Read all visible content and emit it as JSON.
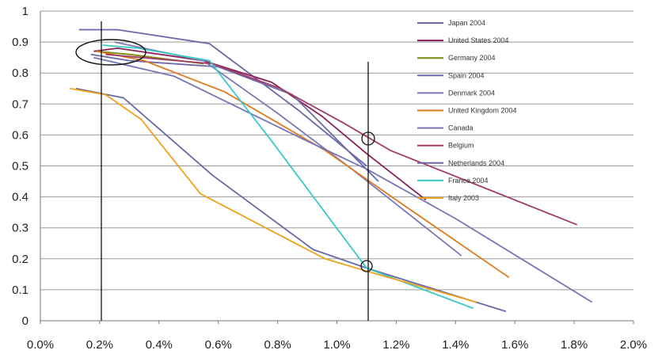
{
  "chart_data": {
    "type": "line",
    "title": "",
    "xlabel": "",
    "ylabel": "",
    "xlim": [
      0.0,
      2.0
    ],
    "ylim": [
      0,
      1
    ],
    "x_ticks": [
      "0.0%",
      "0.2%",
      "0.4%",
      "0.6%",
      "0.8%",
      "1.0%",
      "1.2%",
      "1.4%",
      "1.6%",
      "1.8%",
      "2.0%"
    ],
    "y_ticks": [
      "0",
      "0.1",
      "0.2",
      "0.3",
      "0.4",
      "0.5",
      "0.6",
      "0.7",
      "0.8",
      "0.9",
      "1"
    ],
    "grid": "horizontal",
    "legend_position": "right",
    "series": [
      {
        "name": "Japan 2004",
        "color": "#6a6aa8",
        "x": [
          0.13,
          0.26,
          0.57,
          0.87,
          1.1
        ],
        "y": [
          0.94,
          0.94,
          0.895,
          0.68,
          0.5
        ]
      },
      {
        "name": "United States 2004",
        "color": "#8b2257",
        "x": [
          0.18,
          0.26,
          0.55,
          0.78,
          0.95,
          1.1,
          1.3
        ],
        "y": [
          0.87,
          0.88,
          0.84,
          0.77,
          0.66,
          0.54,
          0.39
        ]
      },
      {
        "name": "Germany 2004",
        "color": "#7a8a0a",
        "x": [
          0.19,
          0.3,
          0.55
        ],
        "y": [
          0.87,
          0.86,
          0.83
        ]
      },
      {
        "name": "Spain 2004",
        "color": "#6a6aa8",
        "x": [
          0.17,
          0.3,
          0.6,
          0.85,
          1.14
        ],
        "y": [
          0.86,
          0.84,
          0.82,
          0.73,
          0.45
        ]
      },
      {
        "name": "Denmark 2004",
        "color": "#7a7ab8",
        "x": [
          0.25,
          0.55,
          0.8,
          1.05,
          1.42
        ],
        "y": [
          0.9,
          0.84,
          0.67,
          0.49,
          0.21
        ]
      },
      {
        "name": "United Kingdom 2004",
        "color": "#e07a1f",
        "x": [
          0.19,
          0.35,
          0.62,
          0.96,
          1.2,
          1.58
        ],
        "y": [
          0.87,
          0.84,
          0.74,
          0.55,
          0.39,
          0.14
        ]
      },
      {
        "name": "Canada",
        "color": "#7575b5",
        "x": [
          0.18,
          0.45,
          0.9,
          1.1,
          1.4,
          1.86
        ],
        "y": [
          0.85,
          0.79,
          0.58,
          0.49,
          0.33,
          0.06
        ]
      },
      {
        "name": "Belgium",
        "color": "#a23a6a",
        "x": [
          0.22,
          0.58,
          0.81,
          1.02,
          1.18,
          1.81
        ],
        "y": [
          0.86,
          0.83,
          0.75,
          0.64,
          0.55,
          0.31
        ]
      },
      {
        "name": "Netherlands 2004",
        "color": "#6868a8",
        "x": [
          0.12,
          0.28,
          0.58,
          0.92,
          1.1,
          1.57
        ],
        "y": [
          0.75,
          0.72,
          0.47,
          0.23,
          0.17,
          0.03
        ]
      },
      {
        "name": "France 2004",
        "color": "#39c8c8",
        "x": [
          0.21,
          0.33,
          0.57,
          0.78,
          1.1,
          1.46
        ],
        "y": [
          0.89,
          0.88,
          0.84,
          0.58,
          0.17,
          0.04
        ]
      },
      {
        "name": "Italy 2003",
        "color": "#f0a21c",
        "x": [
          0.1,
          0.22,
          0.34,
          0.54,
          0.96,
          1.1,
          1.47
        ],
        "y": [
          0.75,
          0.73,
          0.65,
          0.41,
          0.2,
          0.16,
          0.06
        ]
      }
    ]
  }
}
